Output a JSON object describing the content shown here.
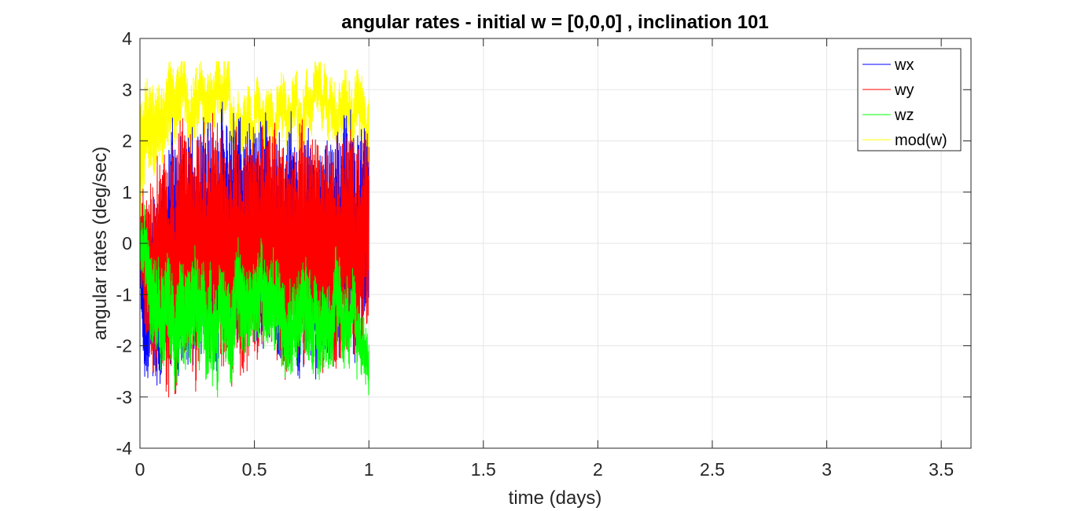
{
  "chart_data": {
    "type": "line",
    "title": "angular rates - initial w = [0,0,0] , inclination 101",
    "xlabel": "time (days)",
    "ylabel": "angular rates (deg/sec)",
    "xlim": [
      0,
      3.63
    ],
    "ylim": [
      -4,
      4
    ],
    "xticks": [
      0,
      0.5,
      1,
      1.5,
      2,
      2.5,
      3,
      3.5
    ],
    "xtick_labels": [
      "0",
      "0.5",
      "1",
      "1.5",
      "2",
      "2.5",
      "3",
      "3.5"
    ],
    "yticks": [
      -4,
      -3,
      -2,
      -1,
      0,
      1,
      2,
      3,
      4
    ],
    "ytick_labels": [
      "-4",
      "-3",
      "-2",
      "-1",
      "0",
      "1",
      "2",
      "3",
      "4"
    ],
    "grid": true,
    "legend_position": "top-right",
    "data_x_range": [
      0,
      1
    ],
    "series": [
      {
        "name": "wx",
        "color": "#0000ff",
        "mean": [
          [
            0,
            -0.2
          ],
          [
            0.02,
            -1.6
          ],
          [
            0.05,
            -0.8
          ],
          [
            0.15,
            0.0
          ],
          [
            0.3,
            -0.1
          ],
          [
            0.5,
            0.1
          ],
          [
            0.7,
            0.0
          ],
          [
            0.9,
            0.1
          ],
          [
            1.0,
            0.0
          ]
        ],
        "amplitude": [
          [
            0,
            0.6
          ],
          [
            0.02,
            1.2
          ],
          [
            0.05,
            1.6
          ],
          [
            0.1,
            2.2
          ],
          [
            0.3,
            2.2
          ],
          [
            0.6,
            2.1
          ],
          [
            0.9,
            2.1
          ],
          [
            1.0,
            2.0
          ]
        ]
      },
      {
        "name": "wy",
        "color": "#ff0000",
        "mean": [
          [
            0,
            -0.3
          ],
          [
            0.05,
            -0.4
          ],
          [
            0.15,
            -0.1
          ],
          [
            0.3,
            -0.2
          ],
          [
            0.5,
            0.0
          ],
          [
            0.7,
            -0.1
          ],
          [
            0.9,
            0.0
          ],
          [
            1.0,
            -0.1
          ]
        ],
        "amplitude": [
          [
            0,
            0.8
          ],
          [
            0.05,
            1.8
          ],
          [
            0.1,
            2.3
          ],
          [
            0.3,
            2.3
          ],
          [
            0.6,
            2.2
          ],
          [
            0.9,
            2.1
          ],
          [
            1.0,
            2.0
          ]
        ]
      },
      {
        "name": "wz",
        "color": "#00ff00",
        "mean": [
          [
            0,
            0.0
          ],
          [
            0.05,
            -0.6
          ],
          [
            0.15,
            -1.5
          ],
          [
            0.3,
            -1.5
          ],
          [
            0.5,
            -1.0
          ],
          [
            0.7,
            -1.4
          ],
          [
            0.9,
            -1.5
          ],
          [
            1.0,
            -2.2
          ]
        ],
        "amplitude": [
          [
            0,
            0.4
          ],
          [
            0.05,
            0.9
          ],
          [
            0.2,
            1.0
          ],
          [
            0.5,
            0.8
          ],
          [
            0.8,
            0.9
          ],
          [
            1.0,
            0.5
          ]
        ]
      },
      {
        "name": "mod(w)",
        "color": "#ffff00",
        "mean": [
          [
            0,
            1.5
          ],
          [
            0.05,
            2.3
          ],
          [
            0.15,
            2.8
          ],
          [
            0.3,
            2.7
          ],
          [
            0.5,
            2.4
          ],
          [
            0.7,
            2.6
          ],
          [
            0.9,
            2.6
          ],
          [
            1.0,
            2.5
          ]
        ],
        "amplitude": [
          [
            0,
            1.2
          ],
          [
            0.05,
            0.8
          ],
          [
            0.2,
            0.6
          ],
          [
            0.5,
            0.5
          ],
          [
            0.8,
            0.5
          ],
          [
            1.0,
            0.6
          ]
        ]
      }
    ]
  }
}
